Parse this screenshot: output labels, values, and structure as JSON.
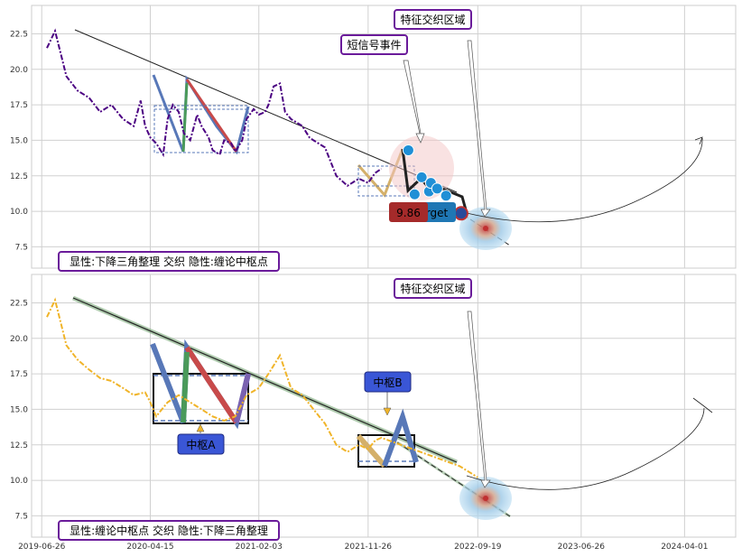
{
  "chart_data": [
    {
      "type": "line",
      "panel": "top",
      "ylim": [
        6.0,
        24.5
      ],
      "yticks": [
        "7.5",
        "10.0",
        "12.5",
        "15.0",
        "17.5",
        "20.0",
        "22.5"
      ],
      "ytick_values": [
        7.5,
        10.0,
        12.5,
        15.0,
        17.5,
        20.0,
        22.5
      ],
      "grid": true,
      "series": [
        {
          "color": "#4b0082",
          "style": "dash-dot",
          "x": [
            "2019-07-10",
            "2019-08-01",
            "2019-09-01",
            "2019-10-01",
            "2019-11-01",
            "2019-12-01",
            "2020-01-01",
            "2020-02-01",
            "2020-03-01",
            "2020-03-20",
            "2020-04-01",
            "2020-04-15",
            "2020-05-01",
            "2020-05-20",
            "2020-06-01",
            "2020-06-15",
            "2020-07-01",
            "2020-07-15",
            "2020-08-01",
            "2020-08-20",
            "2020-09-01",
            "2020-09-20",
            "2020-10-01",
            "2020-10-20",
            "2020-11-01",
            "2020-11-20",
            "2020-12-01",
            "2020-12-20",
            "2021-01-01",
            "2021-01-20",
            "2021-02-03",
            "2021-02-20",
            "2021-03-01",
            "2021-03-15",
            "2021-04-01",
            "2021-04-15",
            "2021-05-01",
            "2021-05-20",
            "2021-06-01",
            "2021-06-20",
            "2021-07-01",
            "2021-08-01",
            "2021-09-01",
            "2021-10-01",
            "2021-11-01",
            "2021-11-26",
            "2021-12-15",
            "2022-01-01"
          ],
          "y": [
            21.5,
            22.7,
            19.5,
            18.5,
            18.0,
            17.0,
            17.5,
            16.5,
            16.0,
            17.8,
            16.0,
            15.2,
            14.8,
            14.0,
            16.5,
            17.5,
            17.0,
            15.5,
            15.0,
            16.8,
            16.0,
            15.2,
            14.3,
            14.0,
            15.0,
            14.8,
            14.2,
            15.0,
            16.5,
            17.2,
            16.8,
            17.0,
            17.5,
            18.8,
            19.0,
            17.0,
            16.5,
            16.2,
            16.0,
            15.2,
            15.0,
            14.5,
            12.5,
            11.8,
            12.3,
            12.0,
            12.7,
            13.0
          ]
        }
      ],
      "annotations": [
        {
          "text": "特征交织区域",
          "color": "#1f77b4",
          "border": "#6a1b9a"
        },
        {
          "text": "短信号事件",
          "color": "#b03050",
          "border": "#6a1b9a"
        },
        {
          "text": "显性:下降三角整理 交织 隐性:缠论中枢点",
          "color": "#1f77b4",
          "border": "#6a1b9a"
        },
        {
          "text": "9.86",
          "color": "#ffffff",
          "background": "#a52a2a"
        },
        {
          "text": "rget",
          "color": "#ffffff",
          "background": "#1f77b4"
        }
      ],
      "markers": [
        {
          "x": "2022-03-15",
          "y": 14.3
        },
        {
          "x": "2022-04-01",
          "y": 11.2
        },
        {
          "x": "2022-04-20",
          "y": 12.4
        },
        {
          "x": "2022-05-10",
          "y": 11.4
        },
        {
          "x": "2022-05-15",
          "y": 12.0
        },
        {
          "x": "2022-06-01",
          "y": 11.6
        },
        {
          "x": "2022-06-25",
          "y": 11.1
        },
        {
          "x": "2022-08-05",
          "y": 9.86
        }
      ]
    },
    {
      "type": "line",
      "panel": "bottom",
      "ylim": [
        6.0,
        24.5
      ],
      "yticks": [
        "7.5",
        "10.0",
        "12.5",
        "15.0",
        "17.5",
        "20.0",
        "22.5"
      ],
      "ytick_values": [
        7.5,
        10.0,
        12.5,
        15.0,
        17.5,
        20.0,
        22.5
      ],
      "xticks": [
        "2019-06-26",
        "2020-04-15",
        "2021-02-03",
        "2021-11-26",
        "2022-09-19",
        "2023-06-26",
        "2024-04-01"
      ],
      "xlim": [
        "2019-06-01",
        "2024-08-15"
      ],
      "grid": true,
      "series": [
        {
          "color": "#f0b429",
          "style": "dash-dot",
          "x": [
            "2019-07-10",
            "2019-08-01",
            "2019-09-01",
            "2019-10-01",
            "2019-11-01",
            "2019-12-01",
            "2020-01-01",
            "2020-02-01",
            "2020-03-01",
            "2020-04-01",
            "2020-04-15",
            "2020-05-01",
            "2020-06-01",
            "2020-07-01",
            "2020-08-01",
            "2020-09-01",
            "2020-10-01",
            "2020-11-01",
            "2020-12-01",
            "2021-01-01",
            "2021-02-03",
            "2021-03-01",
            "2021-04-01",
            "2021-05-01",
            "2021-06-01",
            "2021-07-01",
            "2021-08-01",
            "2021-09-01",
            "2021-10-01",
            "2021-11-01",
            "2021-11-26",
            "2021-12-15",
            "2022-01-01",
            "2022-08-01",
            "2022-09-01",
            "2022-09-19"
          ],
          "y": [
            21.5,
            22.7,
            19.5,
            18.5,
            17.8,
            17.2,
            17.0,
            16.5,
            16.0,
            16.2,
            15.5,
            14.5,
            15.5,
            16.0,
            15.5,
            15.0,
            14.5,
            14.2,
            14.5,
            16.0,
            16.5,
            17.5,
            18.8,
            16.5,
            16.0,
            15.0,
            14.0,
            12.5,
            12.0,
            12.5,
            12.2,
            12.8,
            13.0,
            11.0,
            10.5,
            10.2
          ]
        }
      ],
      "annotations": [
        {
          "text": "特征交织区域",
          "color": "#1f77b4",
          "border": "#6a1b9a"
        },
        {
          "text": "显性:缠论中枢点 交织 隐性:下降三角整理",
          "color": "#1f77b4",
          "border": "#6a1b9a"
        },
        {
          "text": "中枢A",
          "color": "#ffffff",
          "background": "#3a56d6"
        },
        {
          "text": "中枢B",
          "color": "#ffffff",
          "background": "#3a56d6"
        }
      ]
    }
  ]
}
